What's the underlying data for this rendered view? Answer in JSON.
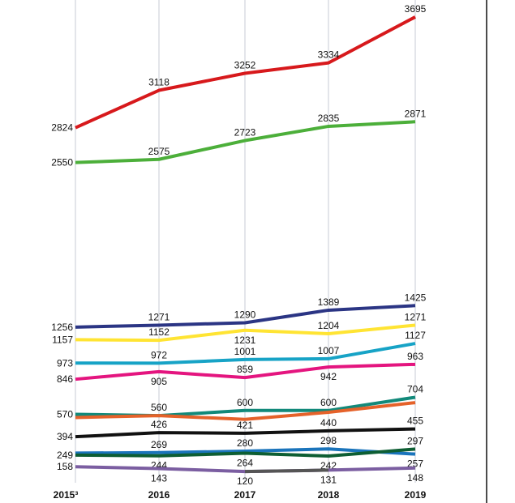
{
  "chart_data": {
    "type": "line",
    "title": "",
    "xlabel": "",
    "ylabel": "",
    "categories": [
      "2015³",
      "2016",
      "2017",
      "2018",
      "2019"
    ],
    "ylim": [
      0,
      3700
    ],
    "grid": "vertical",
    "legend": "none",
    "series": [
      {
        "color": "#d7191c",
        "values": [
          2824,
          3118,
          3252,
          3334,
          3695
        ],
        "labels": [
          "2824",
          "3118",
          "3252",
          "3334",
          "3695"
        ]
      },
      {
        "color": "#4caf3a",
        "values": [
          2550,
          2575,
          2723,
          2835,
          2871
        ],
        "labels": [
          "2550",
          "2575",
          "2723",
          "2835",
          "2871"
        ]
      },
      {
        "color": "#2b3584",
        "values": [
          1256,
          1271,
          1290,
          1389,
          1425
        ],
        "labels": [
          "1256",
          "1271",
          "1290",
          "1389",
          "1425"
        ]
      },
      {
        "color": "#ffe433",
        "values": [
          1157,
          1152,
          1231,
          1204,
          1271
        ],
        "labels": [
          "1157",
          "1152",
          "1231",
          "1204",
          "1271"
        ]
      },
      {
        "color": "#17a3c6",
        "values": [
          973,
          972,
          1001,
          1007,
          1127
        ],
        "labels": [
          "973",
          "972",
          "1001",
          "1007",
          "1127"
        ]
      },
      {
        "color": "#e4157f",
        "values": [
          846,
          905,
          859,
          942,
          963
        ],
        "labels": [
          "846",
          "905",
          "859",
          "942",
          "963"
        ]
      },
      {
        "color": "#12897a",
        "values": [
          570,
          560,
          600,
          600,
          704
        ],
        "labels": [
          "570",
          "560",
          "600",
          "600",
          "704"
        ]
      },
      {
        "color": "#e5622a",
        "values": [
          545,
          560,
          530,
          586,
          662
        ],
        "labels": [
          "",
          "",
          "",
          "",
          ""
        ]
      },
      {
        "color": "#111111",
        "values": [
          394,
          426,
          421,
          440,
          455
        ],
        "labels": [
          "394",
          "426",
          "421",
          "440",
          "455"
        ]
      },
      {
        "color": "#1a74bb",
        "values": [
          265,
          269,
          280,
          298,
          257
        ],
        "labels": [
          "",
          "269",
          "280",
          "298",
          "257"
        ]
      },
      {
        "color": "#0d5e33",
        "values": [
          249,
          244,
          264,
          242,
          297
        ],
        "labels": [
          "249",
          "244",
          "264",
          "242",
          "297"
        ]
      },
      {
        "color": "#7b5ea1",
        "values": [
          158,
          143,
          120,
          131,
          148
        ],
        "labels": [
          "158",
          "143",
          "120",
          "131",
          "148"
        ]
      }
    ]
  }
}
